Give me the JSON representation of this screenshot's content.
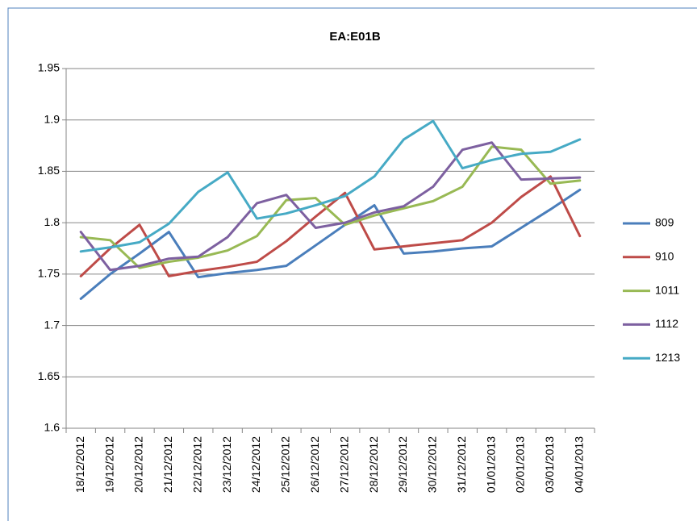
{
  "chart_data": {
    "type": "line",
    "title": "EA:E01B",
    "categories": [
      "18/12/2012",
      "19/12/2012",
      "20/12/2012",
      "21/12/2012",
      "22/12/2012",
      "23/12/2012",
      "24/12/2012",
      "25/12/2012",
      "26/12/2012",
      "27/12/2012",
      "28/12/2012",
      "29/12/2012",
      "30/12/2012",
      "31/12/2012",
      "01/01/2013",
      "02/01/2013",
      "03/01/2013",
      "04/01/2013"
    ],
    "series": [
      {
        "name": "809",
        "color": "#4a7ebb",
        "values": [
          1.726,
          1.75,
          1.77,
          1.791,
          1.747,
          1.751,
          1.754,
          1.758,
          1.778,
          1.798,
          1.817,
          1.77,
          1.772,
          1.775,
          1.777,
          1.795,
          1.813,
          1.832
        ]
      },
      {
        "name": "910",
        "color": "#be4b48",
        "values": [
          1.748,
          1.775,
          1.798,
          1.748,
          1.753,
          1.757,
          1.762,
          1.782,
          1.806,
          1.829,
          1.774,
          1.777,
          1.78,
          1.783,
          1.8,
          1.825,
          1.845,
          1.787
        ]
      },
      {
        "name": "1011",
        "color": "#98b954",
        "values": [
          1.786,
          1.783,
          1.756,
          1.762,
          1.766,
          1.773,
          1.787,
          1.822,
          1.824,
          1.798,
          1.807,
          1.814,
          1.821,
          1.835,
          1.874,
          1.871,
          1.838,
          1.841
        ]
      },
      {
        "name": "1112",
        "color": "#7d60a0",
        "values": [
          1.791,
          1.754,
          1.758,
          1.765,
          1.767,
          1.786,
          1.819,
          1.827,
          1.795,
          1.8,
          1.81,
          1.816,
          1.835,
          1.871,
          1.878,
          1.842,
          1.843,
          1.844
        ]
      },
      {
        "name": "1213",
        "color": "#46aac5",
        "values": [
          1.772,
          1.776,
          1.781,
          1.799,
          1.83,
          1.849,
          1.804,
          1.809,
          1.817,
          1.826,
          1.845,
          1.881,
          1.899,
          1.853,
          1.861,
          1.867,
          1.869,
          1.881
        ]
      }
    ],
    "ylim": [
      1.6,
      1.95
    ],
    "yticks": [
      1.6,
      1.65,
      1.7,
      1.75,
      1.8,
      1.85,
      1.9,
      1.95
    ],
    "grid": true,
    "legend": "right"
  }
}
